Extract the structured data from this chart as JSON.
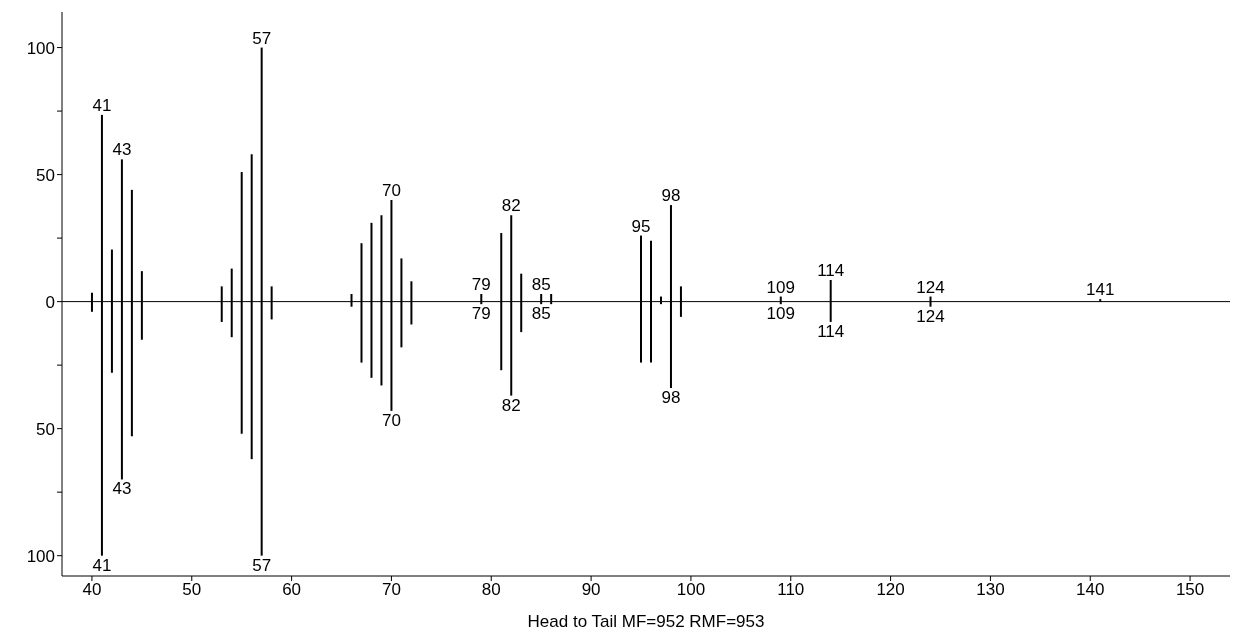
{
  "chart_data": {
    "type": "bar",
    "xlabel": "Head to Tail MF=952 RMF=953",
    "xlim": [
      37,
      154
    ],
    "xticks": [
      40,
      50,
      60,
      70,
      80,
      90,
      100,
      110,
      120,
      130,
      140,
      150
    ],
    "ylim": [
      -108,
      114
    ],
    "yticks": [
      {
        "value": -100,
        "label": "100"
      },
      {
        "value": -75,
        "label": null
      },
      {
        "value": -50,
        "label": "50"
      },
      {
        "value": -25,
        "label": null
      },
      0,
      {
        "value": 25,
        "label": null
      },
      50,
      {
        "value": 75,
        "label": null
      },
      100
    ],
    "grid": false,
    "ref_lines": [
      {
        "axis": "y",
        "value": 0,
        "color": "#000000"
      }
    ],
    "series": [
      {
        "color": "#000000",
        "x": [
          40,
          41,
          42,
          43,
          44,
          45,
          53,
          54,
          55,
          56,
          57,
          58,
          66,
          67,
          68,
          69,
          70,
          71,
          72,
          79,
          81,
          82,
          83,
          85,
          86,
          95,
          96,
          97,
          98,
          99,
          109,
          114,
          124,
          141
        ],
        "values": [
          3.5,
          73.5,
          20.5,
          56,
          44,
          12,
          6,
          13,
          51,
          58,
          100,
          6,
          3,
          23,
          31,
          34,
          40,
          17,
          8,
          3,
          27,
          34,
          11,
          3,
          3,
          26,
          24,
          2,
          38,
          6,
          2,
          8.5,
          2,
          1
        ]
      },
      {
        "color": "#000000",
        "x": [
          40,
          41,
          42,
          43,
          44,
          45,
          53,
          54,
          55,
          56,
          57,
          58,
          66,
          67,
          68,
          69,
          70,
          71,
          72,
          79,
          81,
          82,
          83,
          85,
          86,
          95,
          96,
          97,
          98,
          99,
          109,
          114,
          124
        ],
        "values": [
          -4,
          -100,
          -28,
          -70,
          -53,
          -15,
          -8,
          -14,
          -52,
          -62,
          -100,
          -7,
          -2,
          -24,
          -30,
          -33,
          -43,
          -18,
          -9,
          -1,
          -27,
          -37,
          -12,
          -1,
          -1,
          -24,
          -24,
          -1,
          -34,
          -6,
          -1,
          -8,
          -2
        ]
      }
    ],
    "annotations": [
      {
        "text": "41",
        "x": 41,
        "y": 73.5
      },
      {
        "text": "43",
        "x": 43,
        "y": 56
      },
      {
        "text": "57",
        "x": 57,
        "y": 100
      },
      {
        "text": "70",
        "x": 70,
        "y": 40
      },
      {
        "text": "79",
        "x": 79,
        "y": 3
      },
      {
        "text": "82",
        "x": 82,
        "y": 34
      },
      {
        "text": "85",
        "x": 85,
        "y": 3
      },
      {
        "text": "95",
        "x": 95,
        "y": 26
      },
      {
        "text": "98",
        "x": 98,
        "y": 38
      },
      {
        "text": "109",
        "x": 109,
        "y": 2
      },
      {
        "text": "114",
        "x": 114,
        "y": 8.5
      },
      {
        "text": "124",
        "x": 124,
        "y": 2
      },
      {
        "text": "141",
        "x": 141,
        "y": 1
      },
      {
        "text": "41",
        "x": 41,
        "y": -100
      },
      {
        "text": "43",
        "x": 43,
        "y": -70
      },
      {
        "text": "57",
        "x": 57,
        "y": -100
      },
      {
        "text": "70",
        "x": 70,
        "y": -43
      },
      {
        "text": "79",
        "x": 79,
        "y": -1
      },
      {
        "text": "82",
        "x": 82,
        "y": -37
      },
      {
        "text": "85",
        "x": 85,
        "y": -1
      },
      {
        "text": "98",
        "x": 98,
        "y": -34
      },
      {
        "text": "109",
        "x": 109,
        "y": -1
      },
      {
        "text": "114",
        "x": 114,
        "y": -8
      },
      {
        "text": "124",
        "x": 124,
        "y": -2
      }
    ]
  }
}
